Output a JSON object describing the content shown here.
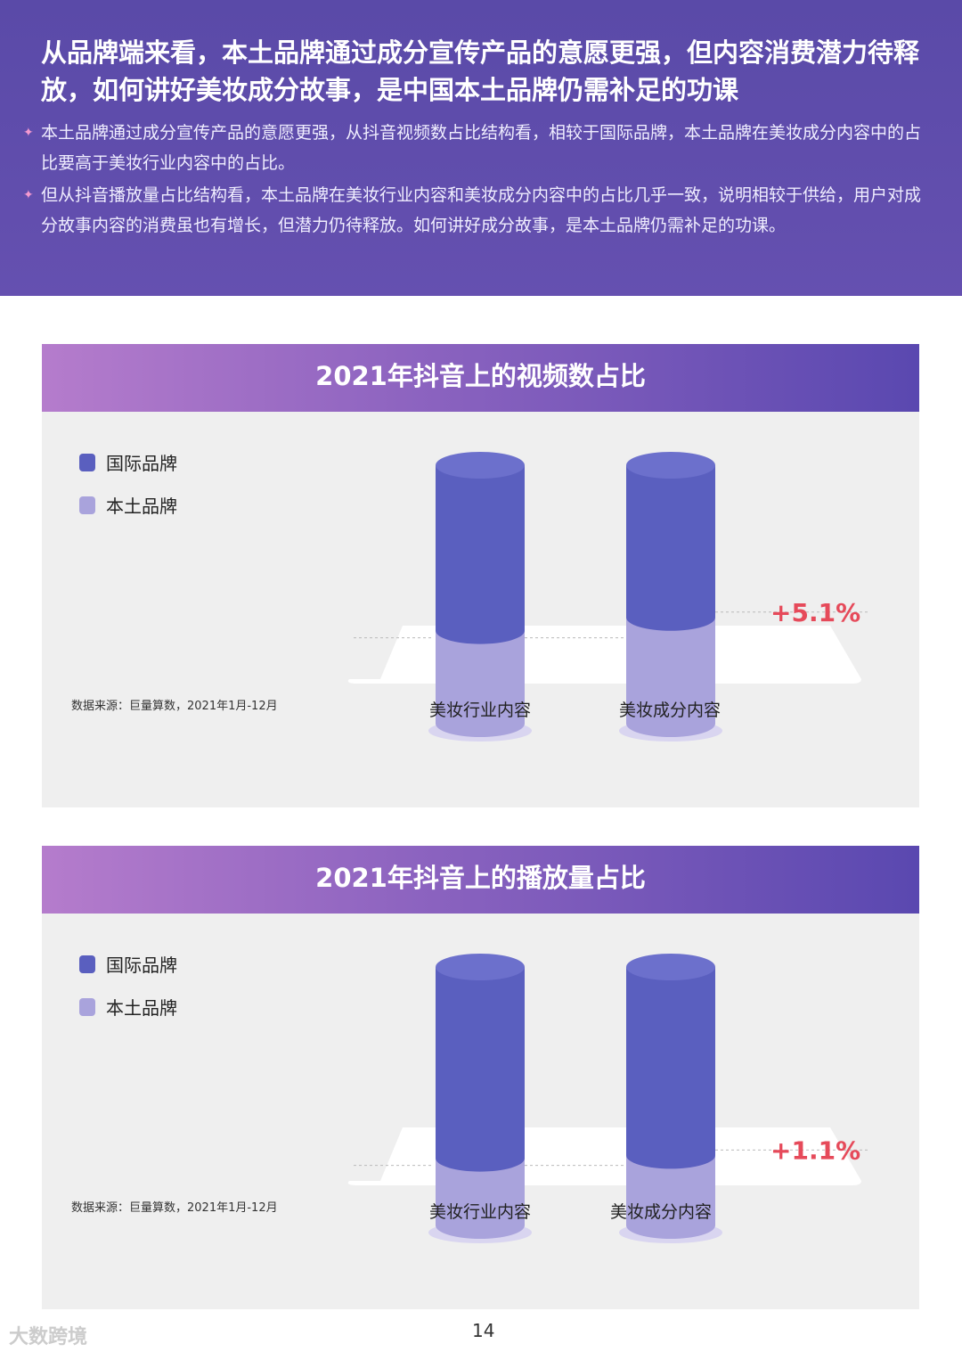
{
  "header": {
    "title": "从品牌端来看，本土品牌通过成分宣传产品的意愿更强，但内容消费潜力待释放，如何讲好美妆成分故事，是中国本土品牌仍需补足的功课",
    "bullets": [
      "本土品牌通过成分宣传产品的意愿更强，从抖音视频数占比结构看，相较于国际品牌，本土品牌在美妆成分内容中的占比要高于美妆行业内容中的占比。",
      "但从抖音播放量占比结构看，本土品牌在美妆行业内容和美妆成分内容中的占比几乎一致，说明相较于供给，用户对成分故事内容的消费虽也有增长，但潜力仍待释放。如何讲好成分故事，是本土品牌仍需补足的功课。"
    ]
  },
  "chart_data": [
    {
      "type": "bar",
      "stacked": "percent",
      "title": "2021年抖音上的视频数占比",
      "categories": [
        "美妆行业内容",
        "美妆成分内容"
      ],
      "series": [
        {
          "name": "国际品牌",
          "values": [
            64,
            58.9
          ],
          "color": "#5a5fbf"
        },
        {
          "name": "本土品牌",
          "values": [
            36,
            41.1
          ],
          "color": "#a9a3dc"
        }
      ],
      "annotation": "+5.1%",
      "source": "数据来源：巨量算数，2021年1月-12月",
      "legend": "top-left"
    },
    {
      "type": "bar",
      "stacked": "percent",
      "title": "2021年抖音上的播放量占比",
      "categories": [
        "美妆行业内容",
        "美妆成分内容"
      ],
      "series": [
        {
          "name": "国际品牌",
          "values": [
            74,
            72.9
          ],
          "color": "#5a5fbf"
        },
        {
          "name": "本土品牌",
          "values": [
            26,
            27.1
          ],
          "color": "#a9a3dc"
        }
      ],
      "annotation": "+1.1%",
      "source": "数据来源：巨量算数，2021年1月-12月",
      "legend": "top-left"
    }
  ],
  "footer": {
    "page": "14",
    "logo": "大数跨境"
  }
}
